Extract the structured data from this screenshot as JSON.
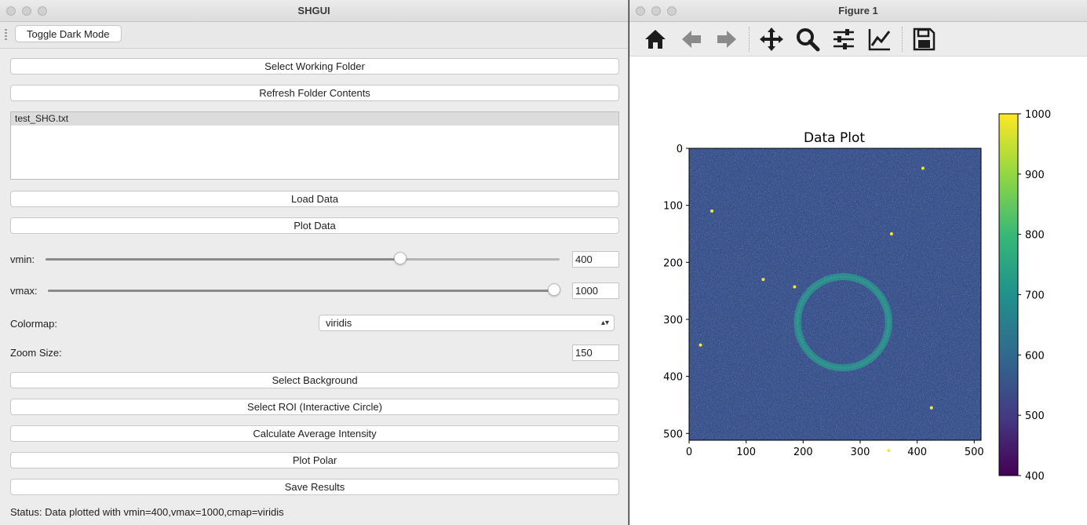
{
  "shgui": {
    "title": "SHGUI",
    "toggle_dark_mode": "Toggle Dark Mode",
    "buttons": {
      "select_folder": "Select Working Folder",
      "refresh": "Refresh Folder Contents",
      "load": "Load Data",
      "plot": "Plot Data",
      "select_background": "Select Background",
      "select_roi": "Select ROI (Interactive Circle)",
      "calc_avg": "Calculate Average Intensity",
      "plot_polar": "Plot Polar",
      "save": "Save Results"
    },
    "files": [
      "test_SHG.txt"
    ],
    "vmin": {
      "label": "vmin:",
      "value": "400",
      "slider_fraction": 0.69
    },
    "vmax": {
      "label": "vmax:",
      "value": "1000",
      "slider_fraction": 1.0
    },
    "colormap": {
      "label": "Colormap:",
      "value": "viridis"
    },
    "zoom": {
      "label": "Zoom Size:",
      "value": "150"
    },
    "status": "Status: Data plotted with vmin=400,vmax=1000,cmap=viridis"
  },
  "figure": {
    "title": "Figure 1",
    "toolbar": [
      "home-icon",
      "back-icon",
      "forward-icon",
      "pan-icon",
      "zoom-icon",
      "configure-icon",
      "edit-axis-icon",
      "save-icon"
    ],
    "colors": {
      "background": "#3b4f8c",
      "ring": "#2a9d8f",
      "bright": "#fde725"
    }
  },
  "chart_data": {
    "type": "heatmap",
    "title": "Data Plot",
    "colormap": "viridis",
    "x_ticks": [
      "0",
      "100",
      "200",
      "300",
      "400",
      "500"
    ],
    "y_ticks": [
      "0",
      "100",
      "200",
      "300",
      "400",
      "500"
    ],
    "xlim": [
      0,
      512
    ],
    "ylim": [
      512,
      0
    ],
    "colorbar": {
      "min": 400,
      "max": 1000,
      "ticks": [
        "400",
        "500",
        "600",
        "700",
        "800",
        "900",
        "1000"
      ]
    },
    "ring": {
      "center_x": 270,
      "center_y": 305,
      "radius": 80
    },
    "bright_spots": [
      [
        185,
        243
      ],
      [
        130,
        230
      ],
      [
        350,
        530
      ],
      [
        425,
        455
      ],
      [
        20,
        345
      ],
      [
        40,
        110
      ],
      [
        355,
        150
      ],
      [
        410,
        35
      ]
    ]
  }
}
